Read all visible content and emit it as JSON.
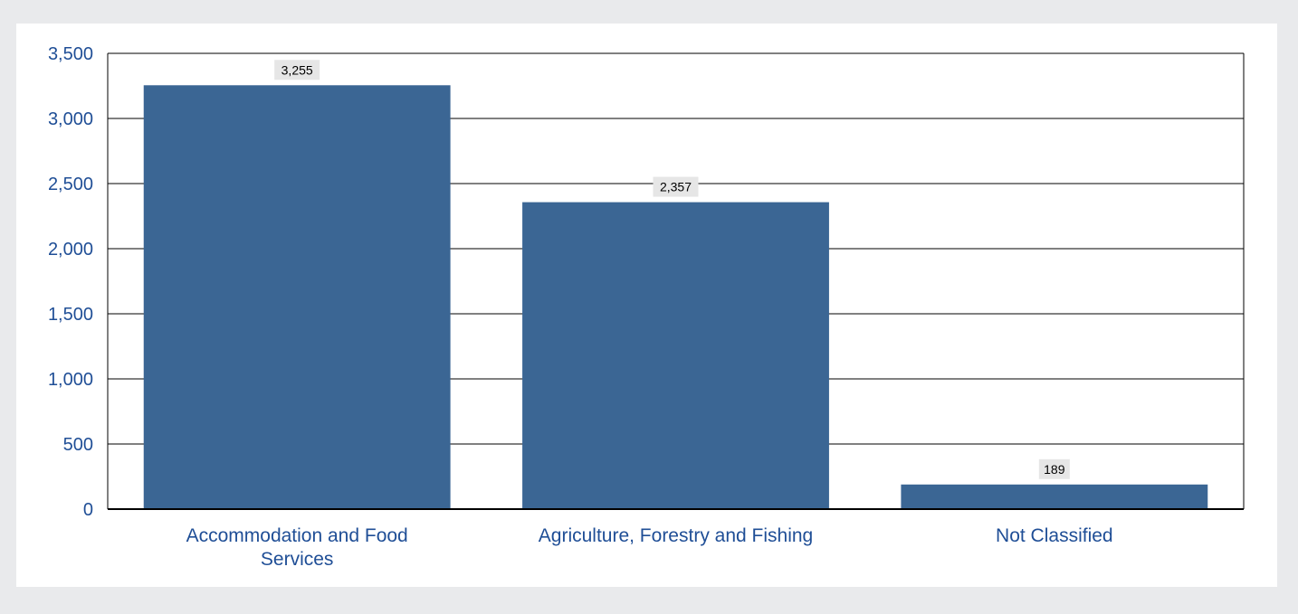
{
  "colors": {
    "page_background": "#e9eaec",
    "panel_background": "#ffffff",
    "bar": "#3b6694",
    "axis_text": "#1f4e96",
    "gridline": "#000000",
    "data_label_background": "#e6e6e6"
  },
  "chart_data": {
    "type": "bar",
    "title": "",
    "xlabel": "",
    "ylabel": "",
    "categories": [
      [
        "Accommodation and Food",
        "Services"
      ],
      [
        "Agriculture, Forestry and Fishing"
      ],
      [
        "Not Classified"
      ]
    ],
    "values": [
      3255,
      2357,
      189
    ],
    "data_labels": [
      "3,255",
      "2,357",
      "189"
    ],
    "ylim": [
      0,
      3500
    ],
    "yticks": [
      0,
      500,
      1000,
      1500,
      2000,
      2500,
      3000,
      3500
    ],
    "ytick_labels": [
      "0",
      "500",
      "1,000",
      "1,500",
      "2,000",
      "2,500",
      "3,000",
      "3,500"
    ],
    "grid": true,
    "legend": "none"
  }
}
